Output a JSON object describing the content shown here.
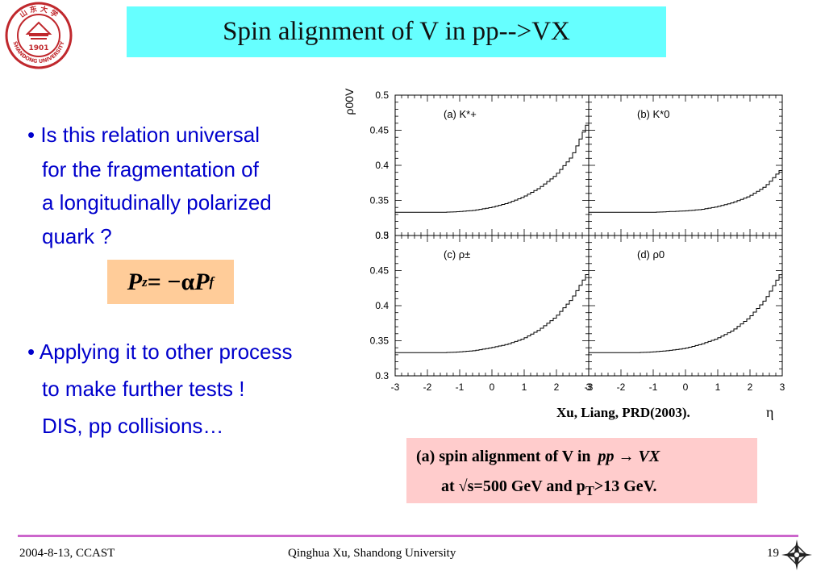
{
  "logo": {
    "top_text": "山 东 大 学",
    "year": "1901",
    "bottom_text": "SHANDONG UNIVERSITY"
  },
  "title": "Spin alignment of V in pp-->VX",
  "bullets": {
    "b1": [
      "• Is this relation universal",
      "for the fragmentation of",
      "a longitudinally polarized",
      "quark ?"
    ],
    "b2": [
      "• Applying it to other process",
      "to make further tests !",
      "DIS, pp collisions…"
    ]
  },
  "formula": {
    "lhs": "P",
    "lhs_sub": "z",
    "op": " = −α",
    "rhs": "P",
    "rhs_sub": "f"
  },
  "chart_data": {
    "type": "line",
    "ylabel": "ρ00V",
    "xlabel": "η",
    "citation": "Xu,  Liang, PRD(2003).",
    "xlim": [
      -3,
      3
    ],
    "ylim": [
      0.3,
      0.5
    ],
    "xticks": [
      "-3",
      "-2",
      "-1",
      "0",
      "1",
      "2",
      "3"
    ],
    "yticks": [
      "0.3",
      "0.35",
      "0.4",
      "0.45",
      "0.5"
    ],
    "x": [
      -3,
      -2.5,
      -2,
      -1.5,
      -1,
      -0.5,
      0,
      0.5,
      1,
      1.5,
      2,
      2.5,
      3
    ],
    "panels": [
      {
        "label": "(a) K*+",
        "values": [
          0.333,
          0.333,
          0.333,
          0.333,
          0.334,
          0.336,
          0.34,
          0.346,
          0.355,
          0.368,
          0.386,
          0.413,
          0.462
        ]
      },
      {
        "label": "(b) K*0",
        "values": [
          0.333,
          0.333,
          0.333,
          0.333,
          0.333,
          0.334,
          0.335,
          0.337,
          0.341,
          0.347,
          0.356,
          0.37,
          0.395
        ]
      },
      {
        "label": "(c) ρ±",
        "values": [
          0.333,
          0.333,
          0.333,
          0.333,
          0.334,
          0.336,
          0.34,
          0.345,
          0.353,
          0.366,
          0.384,
          0.41,
          0.448
        ]
      },
      {
        "label": "(d) ρ0",
        "values": [
          0.333,
          0.333,
          0.333,
          0.333,
          0.334,
          0.336,
          0.339,
          0.345,
          0.353,
          0.365,
          0.383,
          0.409,
          0.448
        ]
      }
    ]
  },
  "caption": {
    "line1": "(a) spin alignment of V in ",
    "process": "pp → VX",
    "line2_pre": "at √s=500 GeV and p",
    "line2_sub": "T",
    "line2_post": ">13 GeV."
  },
  "footer": {
    "left": "2004-8-13,  CCAST",
    "center": "Qinghua Xu, Shandong University",
    "right": "19"
  },
  "colors": {
    "title_bg": "#66ffff",
    "bullet_text": "#0000cc",
    "formula_bg": "#ffcc99",
    "caption_bg": "#ffcccc",
    "footer_line": "#cc66cc",
    "logo_red": "#c0282d"
  }
}
